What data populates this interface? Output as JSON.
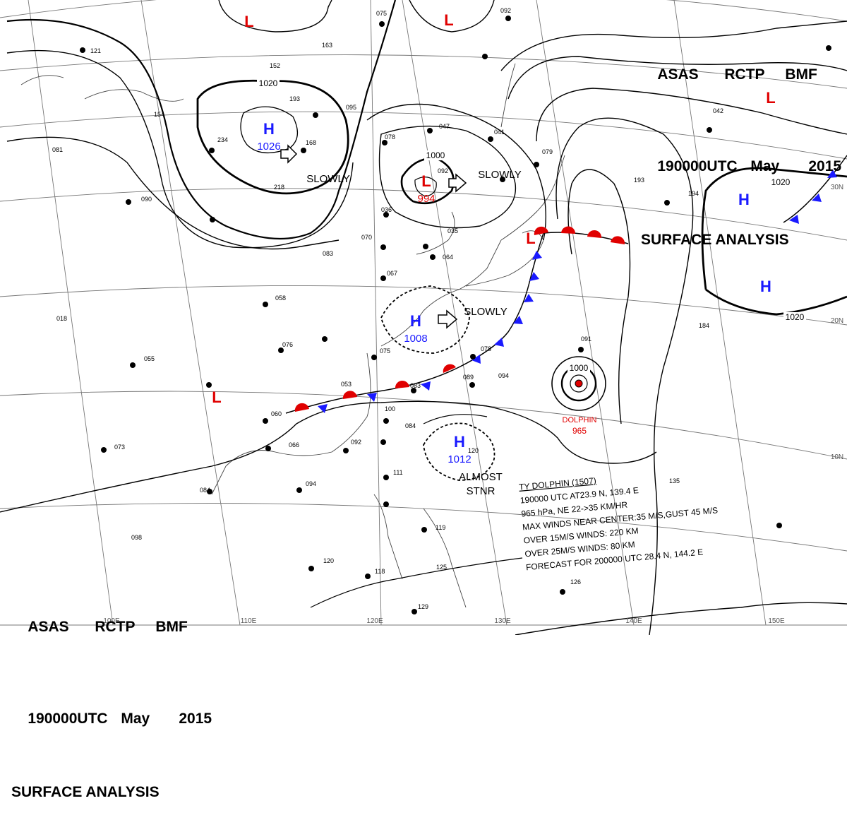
{
  "header": {
    "agency": "ASAS",
    "station": "RCTP",
    "office": "BMF",
    "time": "190000UTC",
    "month": "May",
    "year": "2015",
    "product": "SURFACE ANALYSIS"
  },
  "longitude_labels": [
    "110E",
    "120E",
    "130E",
    "140E",
    "150E",
    "100E"
  ],
  "latitude_labels": [
    "30N",
    "20N",
    "10N"
  ],
  "pressure_systems": [
    {
      "type": "H",
      "value": "1026",
      "motion": "SLOWLY",
      "color": "#1a1aff"
    },
    {
      "type": "L",
      "value": "994",
      "motion": "SLOWLY",
      "color": "#e00000"
    },
    {
      "type": "H",
      "value": "1008",
      "motion": "SLOWLY",
      "color": "#1a1aff"
    },
    {
      "type": "H",
      "value": "1012",
      "motion": "ALMOST STNR",
      "color": "#1a1aff"
    },
    {
      "type": "H",
      "value": "",
      "motion": "",
      "color": "#1a1aff"
    },
    {
      "type": "H",
      "value": "",
      "motion": "",
      "color": "#1a1aff"
    },
    {
      "type": "L",
      "value": "",
      "motion": "",
      "color": "#e00000"
    },
    {
      "type": "L",
      "value": "",
      "motion": "",
      "color": "#e00000"
    },
    {
      "type": "L",
      "value": "",
      "motion": "",
      "color": "#e00000"
    },
    {
      "type": "L",
      "value": "",
      "motion": "",
      "color": "#e00000"
    },
    {
      "type": "L",
      "value": "",
      "motion": "",
      "color": "#e00000"
    }
  ],
  "isobar_labels": [
    "1020",
    "1000",
    "1020",
    "1020",
    "1000"
  ],
  "typhoon": {
    "name": "DOLPHIN",
    "pressure": "965",
    "color": "#e00000",
    "info_lines": [
      "TY  DOLPHIN  (1507)",
      "190000 UTC  AT23.9 N, 139.4 E",
      "965 hPa, NE  22->35 KM/HR",
      "MAX WINDS NEAR CENTER:35 M/S,GUST 45 M/S",
      "OVER 15M/S WINDS: 220 KM",
      "OVER 25M/S WINDS: 80 KM",
      "FORECAST FOR 200000 UTC 28.4 N, 144.2 E"
    ]
  },
  "station_numbers": [
    "121",
    "163",
    "152",
    "193",
    "154",
    "234",
    "168",
    "218",
    "095",
    "078",
    "047",
    "041",
    "079",
    "092",
    "036",
    "035",
    "070",
    "083",
    "064",
    "067",
    "058",
    "076",
    "075",
    "078",
    "089",
    "094",
    "100",
    "084",
    "092",
    "066",
    "060",
    "053",
    "083",
    "073",
    "084",
    "094",
    "111",
    "119",
    "120",
    "118",
    "125",
    "126",
    "129",
    "098",
    "193",
    "194",
    "184",
    "135",
    "091",
    "120",
    "055",
    "018",
    "081",
    "090",
    "075",
    "092",
    "042"
  ],
  "colors": {
    "isobar": "#000000",
    "grid": "#606060",
    "coast": "#404040",
    "warm_front": "#e00000",
    "cold_front": "#1a1aff",
    "high": "#1a1aff",
    "low": "#e00000"
  }
}
